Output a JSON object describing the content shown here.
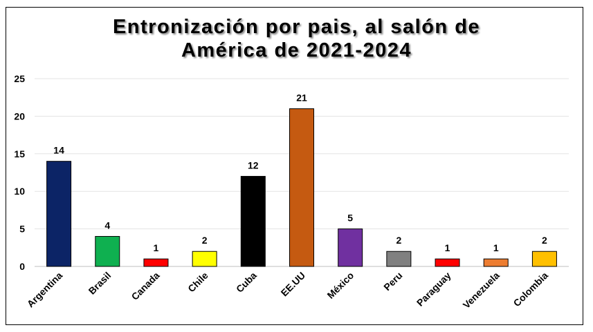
{
  "chart_data": {
    "type": "bar",
    "title_lines": [
      "Entronización por pais, al salón de",
      "América de 2021-2024"
    ],
    "categories": [
      "Argentina",
      "Brasil",
      "Canada",
      "Chile",
      "Cuba",
      "EE.UU",
      "México",
      "Peru",
      "Paraguay",
      "Venezuela",
      "Colombia"
    ],
    "values": [
      14,
      4,
      1,
      2,
      12,
      21,
      5,
      2,
      1,
      1,
      2
    ],
    "colors": [
      "#0c2466",
      "#0fb050",
      "#ff0000",
      "#ffff00",
      "#000000",
      "#c55a11",
      "#7030a0",
      "#808080",
      "#ff0000",
      "#ed7d31",
      "#ffc000"
    ],
    "ylim": [
      0,
      25
    ],
    "yticks": [
      0,
      5,
      10,
      15,
      20,
      25
    ],
    "grid": true,
    "legend": "none",
    "data_labels": true,
    "xlabel": "",
    "ylabel": ""
  }
}
